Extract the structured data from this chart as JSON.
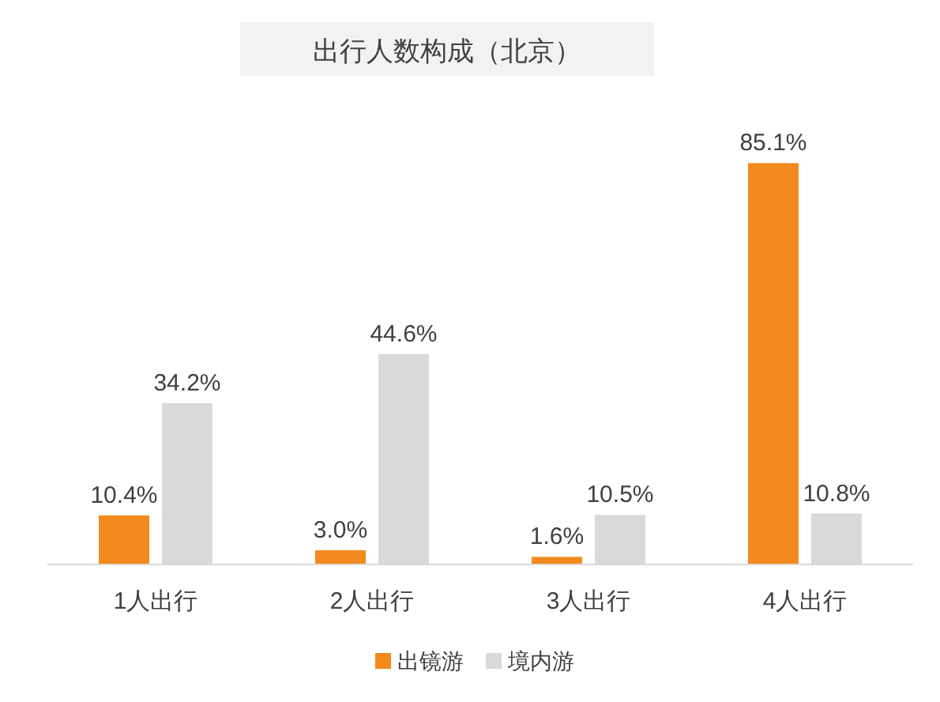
{
  "chart_data": {
    "type": "bar",
    "title": "出行人数构成（北京）",
    "categories": [
      "1人出行",
      "2人出行",
      "3人出行",
      "4人出行"
    ],
    "series": [
      {
        "name": "出镜游",
        "color": "#f28a1d",
        "values": [
          10.4,
          3.0,
          1.6,
          85.1
        ],
        "value_labels": [
          "10.4%",
          "3.0%",
          "1.6%",
          "85.1%"
        ]
      },
      {
        "name": "境内游",
        "color": "#d9d9d9",
        "values": [
          34.2,
          44.6,
          10.5,
          10.8
        ],
        "value_labels": [
          "34.2%",
          "44.6%",
          "10.5%",
          "10.8%"
        ]
      }
    ],
    "legend": "bottom"
  }
}
